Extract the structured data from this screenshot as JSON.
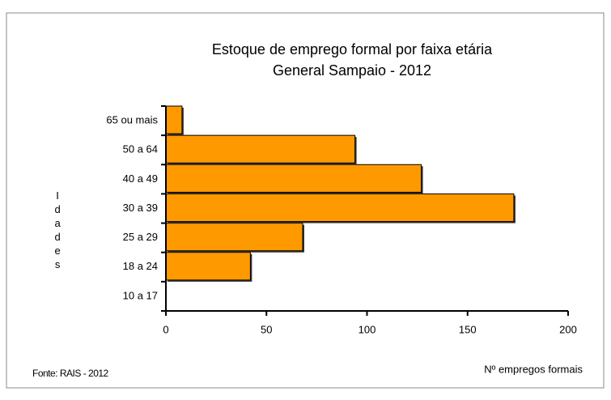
{
  "chart_data": {
    "type": "bar",
    "orientation": "horizontal",
    "title": "Estoque de emprego formal por faixa etária",
    "subtitle": "General Sampaio - 2012",
    "categories": [
      "10 a 17",
      "18 a 24",
      "25 a 29",
      "30 a 39",
      "40 a 49",
      "50 a 64",
      "65 ou mais"
    ],
    "values": [
      0,
      42,
      68,
      173,
      127,
      94,
      8
    ],
    "color": "#ff9900",
    "xlim": [
      0,
      200
    ],
    "xticks": [
      0,
      50,
      100,
      150,
      200
    ],
    "xlabel": "Nº empregos formais",
    "ylabel": "Idades",
    "source": "Fonte: RAIS - 2012",
    "grid": false
  }
}
